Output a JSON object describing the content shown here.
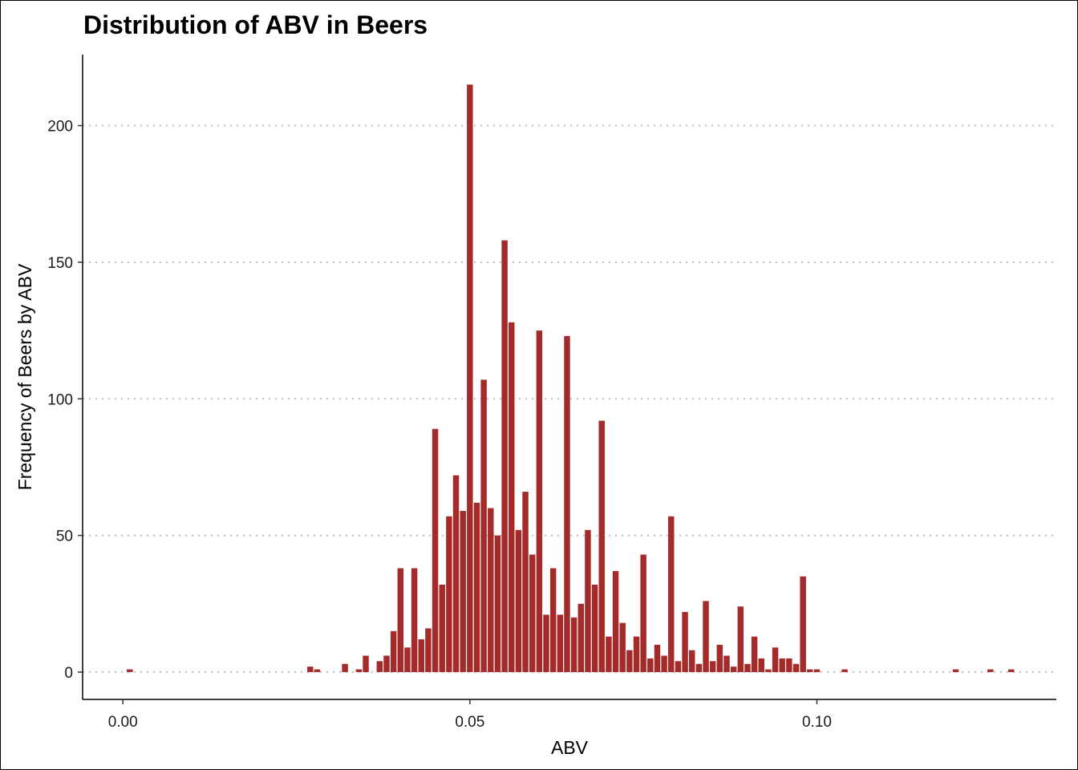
{
  "chart_data": {
    "type": "bar",
    "title": "Distribution of ABV in Beers",
    "xlabel": "ABV",
    "ylabel": "Frequency of Beers by ABV",
    "xlim": [
      -0.0058,
      0.1345
    ],
    "ylim": [
      -10,
      226
    ],
    "x_ticks": [
      0.0,
      0.05,
      0.1
    ],
    "x_tick_labels": [
      "0.00",
      "0.05",
      "0.10"
    ],
    "y_ticks": [
      0,
      50,
      100,
      150,
      200
    ],
    "y_tick_labels": [
      "0",
      "50",
      "100",
      "150",
      "200"
    ],
    "bin_width": 0.001,
    "grid": "horizontal dotted major lines",
    "bar_color": "#A52A2A",
    "grid_color": "#BEBEBE",
    "x": [
      0.001,
      0.027,
      0.028,
      0.032,
      0.034,
      0.035,
      0.037,
      0.038,
      0.039,
      0.04,
      0.041,
      0.042,
      0.043,
      0.044,
      0.045,
      0.046,
      0.047,
      0.048,
      0.049,
      0.05,
      0.051,
      0.052,
      0.053,
      0.054,
      0.055,
      0.056,
      0.057,
      0.058,
      0.059,
      0.06,
      0.061,
      0.062,
      0.063,
      0.064,
      0.065,
      0.066,
      0.067,
      0.068,
      0.069,
      0.07,
      0.071,
      0.072,
      0.073,
      0.074,
      0.075,
      0.076,
      0.077,
      0.078,
      0.079,
      0.08,
      0.081,
      0.082,
      0.083,
      0.084,
      0.085,
      0.086,
      0.087,
      0.088,
      0.089,
      0.09,
      0.091,
      0.092,
      0.093,
      0.094,
      0.095,
      0.096,
      0.097,
      0.098,
      0.099,
      0.1,
      0.104,
      0.12,
      0.125,
      0.128
    ],
    "values": [
      1,
      2,
      1,
      3,
      1,
      6,
      4,
      6,
      15,
      38,
      9,
      38,
      12,
      16,
      89,
      32,
      57,
      72,
      59,
      215,
      62,
      107,
      60,
      50,
      158,
      128,
      52,
      66,
      43,
      125,
      21,
      38,
      21,
      123,
      20,
      25,
      52,
      32,
      92,
      13,
      37,
      18,
      8,
      13,
      43,
      5,
      10,
      6,
      57,
      4,
      22,
      8,
      3,
      26,
      4,
      10,
      6,
      2,
      24,
      3,
      13,
      5,
      1,
      9,
      5,
      5,
      3,
      35,
      1,
      1,
      1,
      1,
      1,
      1
    ]
  }
}
